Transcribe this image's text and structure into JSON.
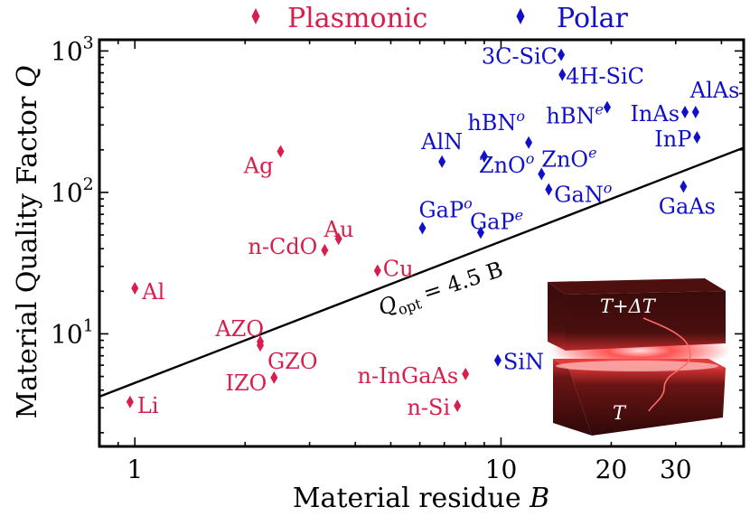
{
  "chart_data": {
    "type": "scatter",
    "xscale": "log",
    "yscale": "log",
    "xlim": [
      0.8,
      46
    ],
    "ylim": [
      1.6,
      1200
    ],
    "xlabel": "Material residue B",
    "ylabel": "Material Quality Factor Q",
    "xticks": [
      {
        "value": 1,
        "label": "1"
      },
      {
        "value": 10,
        "label": "10"
      },
      {
        "value": 20,
        "label": "20"
      },
      {
        "value": 30,
        "label": "30"
      }
    ],
    "yticks": [
      {
        "value": 10,
        "base": "10",
        "exp": "1"
      },
      {
        "value": 100,
        "base": "10",
        "exp": "2"
      },
      {
        "value": 1000,
        "base": "10",
        "exp": "3"
      }
    ],
    "legend": {
      "position": "top",
      "entries": [
        {
          "name": "Plasmonic",
          "color": "#d81e4b"
        },
        {
          "name": "Polar",
          "color": "#1010c8"
        }
      ]
    },
    "series": [
      {
        "name": "Plasmonic",
        "color": "#d81e4b",
        "points": [
          {
            "label": "Li",
            "x": 0.97,
            "y": 3.3
          },
          {
            "label": "Al",
            "x": 1.0,
            "y": 21
          },
          {
            "label": "Ag",
            "x": 2.5,
            "y": 195
          },
          {
            "label": "Au",
            "x": 3.6,
            "y": 47
          },
          {
            "label": "n-CdO",
            "x": 3.3,
            "y": 39
          },
          {
            "label": "Cu",
            "x": 4.6,
            "y": 28
          },
          {
            "label": "AZO",
            "x": 2.2,
            "y": 8.8
          },
          {
            "label": "GZO",
            "x": 2.2,
            "y": 8.3
          },
          {
            "label": "IZO",
            "x": 2.4,
            "y": 4.9
          },
          {
            "label": "n-InGaAs",
            "x": 8.0,
            "y": 5.2
          },
          {
            "label": "n-Si",
            "x": 7.6,
            "y": 3.1
          }
        ]
      },
      {
        "name": "Polar",
        "color": "#1010c8",
        "points": [
          {
            "label": "3C-SiC",
            "x": 14.6,
            "y": 940
          },
          {
            "label": "4H-SiC",
            "x": 14.7,
            "y": 680
          },
          {
            "label": "hBN",
            "sup": "o",
            "x": 11.9,
            "y": 225
          },
          {
            "label": "hBN",
            "sup": "e",
            "x": 19.5,
            "y": 400
          },
          {
            "label": "InAs",
            "x": 31.8,
            "y": 370
          },
          {
            "label": "AlAs",
            "x": 34.0,
            "y": 370
          },
          {
            "label": "InP",
            "x": 34.3,
            "y": 245
          },
          {
            "label": "AlN",
            "x": 6.9,
            "y": 165
          },
          {
            "label": "ZnO",
            "sup": "o",
            "x": 9.0,
            "y": 180
          },
          {
            "label": "ZnO",
            "sup": "e",
            "x": 12.9,
            "y": 135
          },
          {
            "label": "GaN",
            "sup": "o",
            "x": 13.5,
            "y": 105
          },
          {
            "label": "GaAs",
            "x": 31.5,
            "y": 110
          },
          {
            "label": "GaP",
            "sup": "o",
            "x": 6.1,
            "y": 56
          },
          {
            "label": "GaP",
            "sup": "e",
            "x": 8.8,
            "y": 52
          },
          {
            "label": "SiN",
            "x": 9.8,
            "y": 6.5
          }
        ]
      }
    ],
    "reference_line": {
      "label": "Q",
      "sub": "opt",
      "rest": "= 4.5 B",
      "slope": 1,
      "coefficient": 4.5
    },
    "inset": {
      "top_label": "T+ΔT",
      "bottom_label": "T"
    }
  }
}
